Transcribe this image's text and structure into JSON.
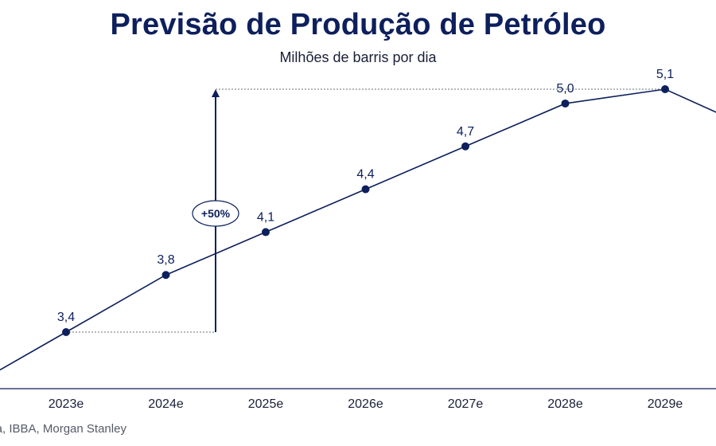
{
  "title": "Previsão de Produção de Petróleo",
  "subtitle": "Milhões de barris por dia",
  "source": "nea, IBBA, Morgan Stanley",
  "colors": {
    "line": "#0d1f5c",
    "text": "#0d1f5c",
    "axis": "#0d1f5c",
    "guide": "#6b6f7a"
  },
  "chart_data": {
    "type": "line",
    "categories": [
      "2023e",
      "2024e",
      "2025e",
      "2026e",
      "2027e",
      "2028e",
      "2029e"
    ],
    "series": [
      {
        "values": [
          3.4,
          3.8,
          4.1,
          4.4,
          4.7,
          5.0,
          5.1
        ]
      }
    ],
    "data_labels": [
      "3,4",
      "3,8",
      "4,1",
      "4,4",
      "4,7",
      "5,0",
      "5,1"
    ],
    "annotation": {
      "label": "+50%",
      "from_value": 3.4,
      "to_value": 5.1
    },
    "grid": false,
    "legend": "none"
  }
}
